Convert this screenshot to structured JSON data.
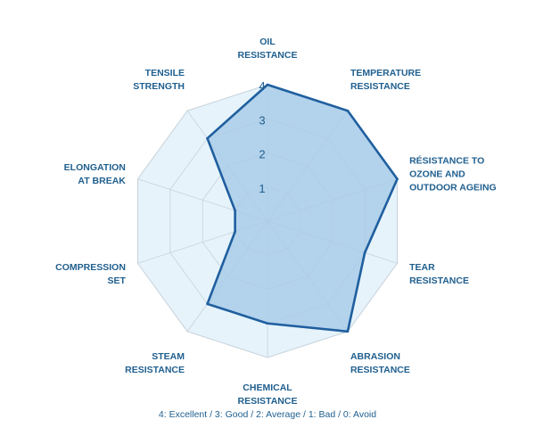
{
  "chart_data": {
    "type": "radar",
    "categories": [
      [
        "OIL",
        "RESISTANCE"
      ],
      [
        "TEMPERATURE",
        "RESISTANCE"
      ],
      [
        "RÉSISTANCE TO",
        "OZONE AND",
        "OUTDOOR AGEING"
      ],
      [
        "TEAR",
        "RESISTANCE"
      ],
      [
        "ABRASION",
        "RESISTANCE"
      ],
      [
        "CHEMICAL",
        "RESISTANCE"
      ],
      [
        "STEAM",
        "RESISTANCE"
      ],
      [
        "COMPRESSION",
        "SET"
      ],
      [
        "ELONGATION",
        "AT BREAK"
      ],
      [
        "TENSILE",
        "STRENGTH"
      ]
    ],
    "values": [
      4,
      4,
      4,
      3,
      4,
      3,
      3,
      1,
      1,
      3
    ],
    "rlim": [
      0,
      4
    ],
    "ticks": [
      "1",
      "2",
      "3",
      "4"
    ],
    "legend_text": "4: Excellent / 3: Good / 2: Average / 1: Bad / 0: Avoid",
    "colors": {
      "background_fill": "#e6f3fb",
      "grid": "#c8d2da",
      "series_fill": "#a9cbe7",
      "series_stroke": "#1f5f9f",
      "text": "#1f5f8f"
    }
  }
}
